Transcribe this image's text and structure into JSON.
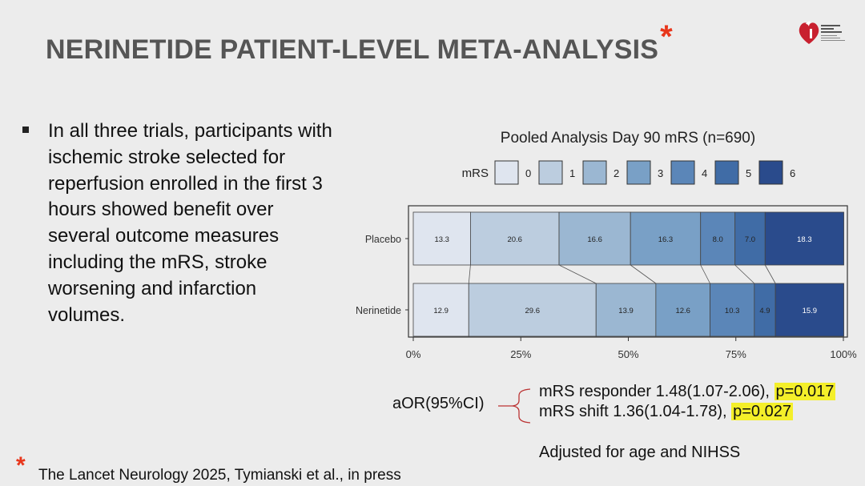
{
  "slide": {
    "title": "NERINETIDE PATIENT-LEVEL META-ANALYSIS",
    "title_asterisk": "*",
    "bullet": "In all three trials, participants with ischemic stroke selected for reperfusion enrolled in the first 3 hours showed benefit over several outcome measures including the mRS, stroke worsening and infarction volumes.",
    "logo_icon": "american-stroke-association-logo",
    "aor_label": "aOR(95%CI)",
    "result1_text": "mRS responder 1.48(1.07-2.06), ",
    "result1_p": "p=0.017",
    "result2_text": "mRS shift 1.36(1.04-1.78), ",
    "result2_p": "p=0.027",
    "adjusted": "Adjusted for age and NIHSS",
    "footnote_asterisk": "*",
    "footnote": "The Lancet Neurology 2025, Tymianski et al., in press",
    "colors": {
      "title": "#555555",
      "asterisk": "#e8361b",
      "highlight": "#f4ef2a"
    }
  },
  "chart_data": {
    "type": "bar",
    "stacked": true,
    "orientation": "horizontal",
    "title": "Pooled Analysis Day 90 mRS (n=690)",
    "legend_title": "mRS",
    "legend_position": "top",
    "categories": [
      "Placebo",
      "Nerinetide"
    ],
    "series": [
      {
        "name": "0",
        "values": [
          13.3,
          12.9
        ],
        "color": "#dfe5ef"
      },
      {
        "name": "1",
        "values": [
          20.6,
          29.6
        ],
        "color": "#bccddf"
      },
      {
        "name": "2",
        "values": [
          16.6,
          13.9
        ],
        "color": "#9bb7d2"
      },
      {
        "name": "3",
        "values": [
          16.3,
          12.6
        ],
        "color": "#79a0c6"
      },
      {
        "name": "4",
        "values": [
          8.0,
          10.3
        ],
        "color": "#5b86b8"
      },
      {
        "name": "5",
        "values": [
          7.0,
          4.9
        ],
        "color": "#406ca6"
      },
      {
        "name": "6",
        "values": [
          18.3,
          15.9
        ],
        "color": "#2a4b8c"
      }
    ],
    "value_labels": [
      [
        "13.3",
        "20.6",
        "16.6",
        "16.3",
        "8.0",
        "7.0",
        "18.3"
      ],
      [
        "12.9",
        "29.6",
        "13.9",
        "12.6",
        "10.3",
        "4.9",
        "15.9"
      ]
    ],
    "xlim": [
      0,
      100
    ],
    "xticks": [
      "0%",
      "25%",
      "50%",
      "75%",
      "100%"
    ],
    "grid": false
  }
}
